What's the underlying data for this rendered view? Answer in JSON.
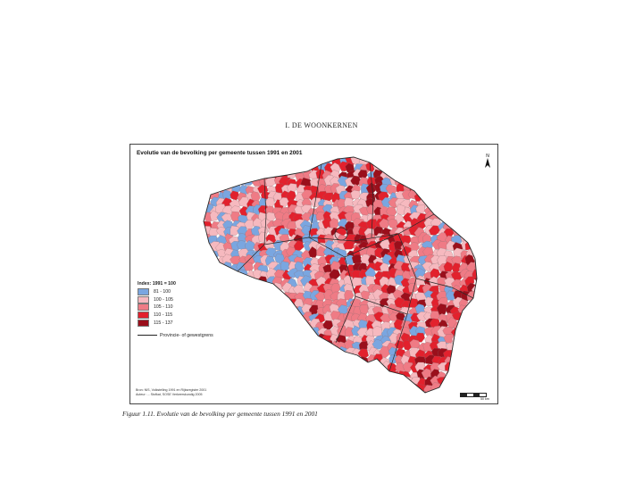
{
  "header": {
    "text": "I. DE WOONKERNEN"
  },
  "map": {
    "title": "Evolutie van de bevolking per gemeente tussen 1991 en 2001",
    "north_label": "N",
    "legend": {
      "title": "Index: 1991 = 100",
      "classes": [
        {
          "label": "81 - 100",
          "color": "#7aa6e0"
        },
        {
          "label": "100 - 105",
          "color": "#f6b9bf"
        },
        {
          "label": "105 - 110",
          "color": "#ef7b85"
        },
        {
          "label": "110 - 115",
          "color": "#e2212d"
        },
        {
          "label": "115 - 137",
          "color": "#9a0f1b"
        }
      ],
      "boundary_label": "Provincie- of gewestgrens"
    },
    "source_lines": [
      "Bron: NIS, Volkstelling 1991 en Rijksregister 2001",
      "Auteur: ... Stofkat, SOSE Verkeerskundig 2005"
    ],
    "scale_label": "50 km"
  },
  "caption": {
    "text": "Figuur 1.11. Evolutie van de bevolking per gemeente tussen 1991 en 2001"
  }
}
